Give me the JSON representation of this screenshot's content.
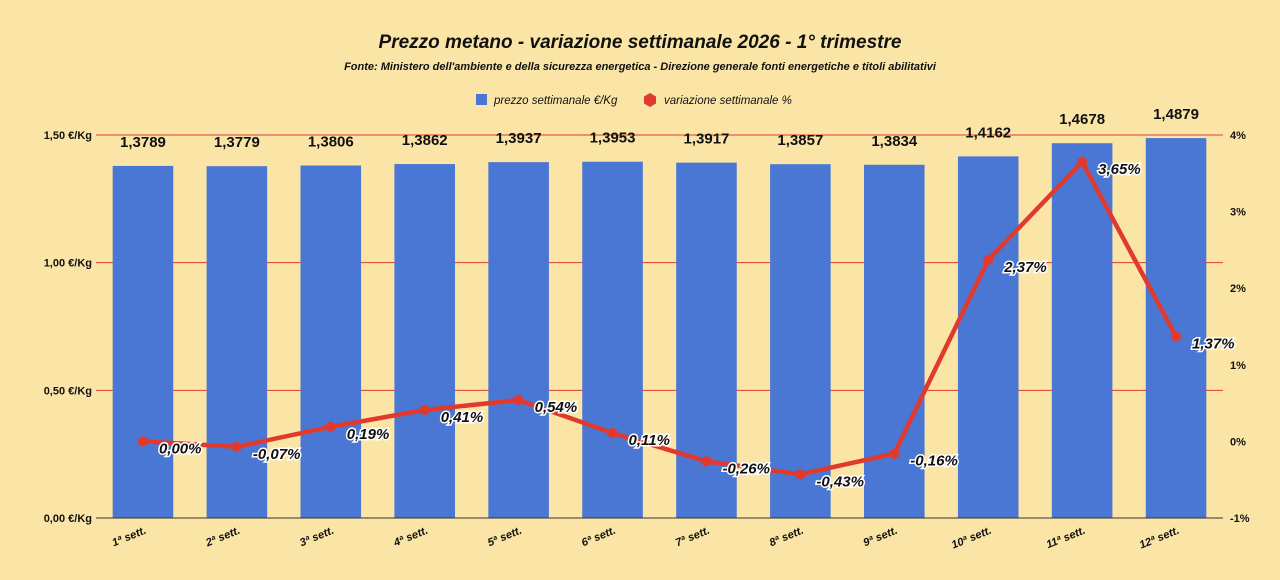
{
  "chart_data": {
    "type": "bar",
    "title": "Prezzo metano - variazione settimanale 2026 - 1° trimestre",
    "subtitle": "Fonte: Ministero dell'ambiente e della sicurezza energetica - Direzione generale fonti energetiche e titoli abilitativi",
    "categories": [
      "1ª sett.",
      "2ª sett.",
      "3ª sett.",
      "4ª sett.",
      "5ª sett.",
      "6ª sett.",
      "7ª sett.",
      "8ª sett.",
      "9ª sett.",
      "10ª sett.",
      "11ª sett.",
      "12ª sett."
    ],
    "series": [
      {
        "name": "prezzo settimanale €/Kg",
        "type": "bar",
        "axis": "left",
        "color": "#4a77d4",
        "values": [
          1.3789,
          1.3779,
          1.3806,
          1.3862,
          1.3937,
          1.3953,
          1.3917,
          1.3857,
          1.3834,
          1.4162,
          1.4678,
          1.4879
        ],
        "labels": [
          "1,3789",
          "1,3779",
          "1,3806",
          "1,3862",
          "1,3937",
          "1,3953",
          "1,3917",
          "1,3857",
          "1,3834",
          "1,4162",
          "1,4678",
          "1,4879"
        ]
      },
      {
        "name": "variazione settimanale %",
        "type": "line",
        "axis": "right",
        "color": "#e03a2f",
        "values": [
          0.0,
          -0.07,
          0.19,
          0.41,
          0.54,
          0.11,
          -0.26,
          -0.43,
          -0.16,
          2.37,
          3.65,
          1.37
        ],
        "labels": [
          "0,00%",
          "-0,07%",
          "0,19%",
          "0,41%",
          "0,54%",
          "0,11%",
          "-0,26%",
          "-0,43%",
          "-0,16%",
          "2,37%",
          "3,65%",
          "1,37%"
        ]
      }
    ],
    "y_left": {
      "min": 0,
      "max": 1.5,
      "ticks": [
        0,
        0.5,
        1.0,
        1.5
      ],
      "tick_labels": [
        "0,00 €/Kg",
        "0,50 €/Kg",
        "1,00 €/Kg",
        "1,50 €/Kg"
      ]
    },
    "y_right": {
      "min": -1,
      "max": 4,
      "ticks": [
        -1,
        0,
        1,
        2,
        3,
        4
      ],
      "tick_labels": [
        "-1%",
        "0%",
        "1%",
        "2%",
        "3%",
        "4%"
      ]
    },
    "gridlines": [
      0.5,
      1.0,
      1.5
    ],
    "grid_color": "#e03a2f",
    "legend_position": "top-center"
  }
}
